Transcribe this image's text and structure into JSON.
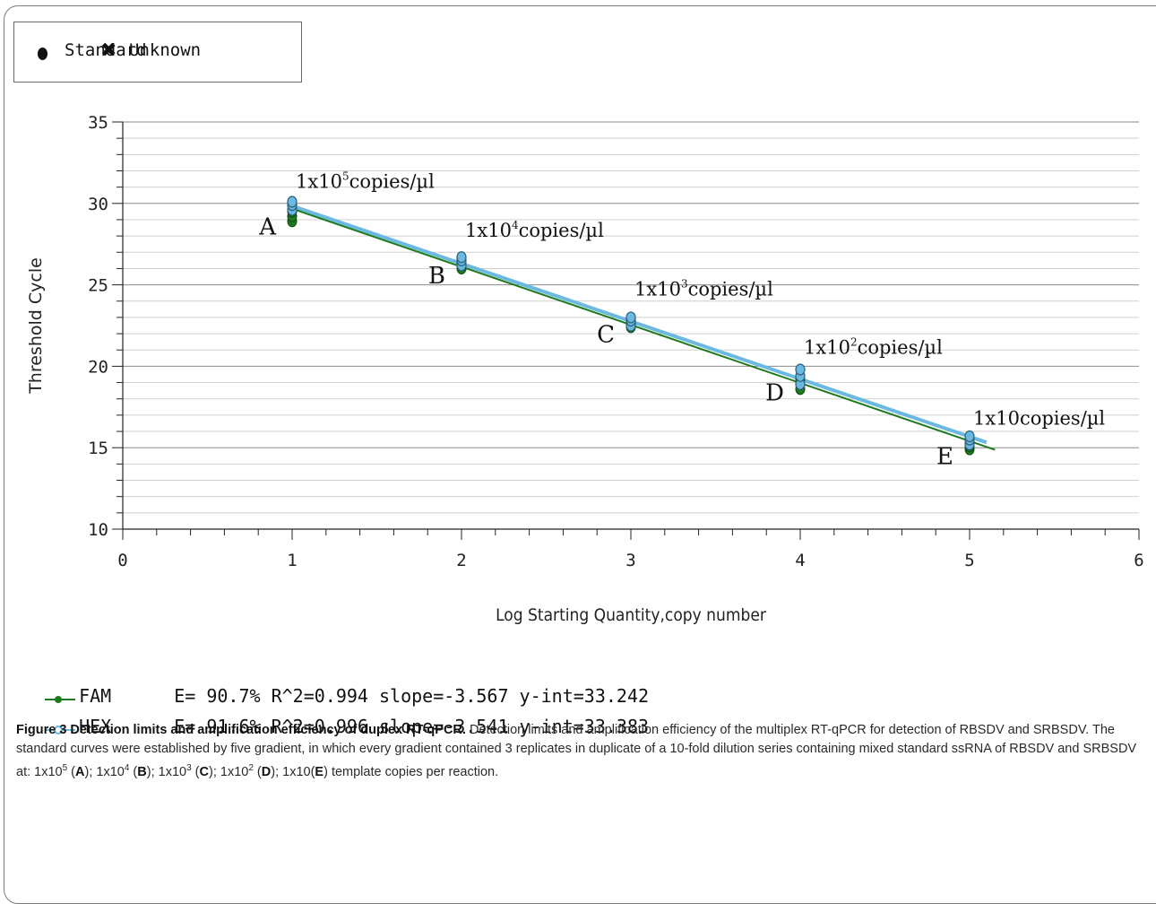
{
  "legend": {
    "standard_label": "Standard",
    "unknown_label": "Unknown",
    "standard_icon": "filled-circle-icon",
    "unknown_icon": "cross-icon"
  },
  "chart_data": {
    "type": "scatter",
    "xlabel": "Log Starting Quantity,copy number",
    "ylabel": "Threshold Cycle",
    "xlim": [
      0,
      6
    ],
    "ylim": [
      10,
      35
    ],
    "x_ticks": [
      "0",
      "1",
      "2",
      "3",
      "4",
      "5",
      "6"
    ],
    "y_ticks": [
      "10",
      "15",
      "20",
      "25",
      "30",
      "35"
    ],
    "grid": "horizontal",
    "series": [
      {
        "name": "FAM",
        "color": "#1e7a1e",
        "points": [
          {
            "x": 1,
            "y": 28.9
          },
          {
            "x": 1,
            "y": 29.2
          },
          {
            "x": 1,
            "y": 29.5
          },
          {
            "x": 2,
            "y": 26.0
          },
          {
            "x": 2,
            "y": 26.2
          },
          {
            "x": 2,
            "y": 26.4
          },
          {
            "x": 3,
            "y": 22.4
          },
          {
            "x": 3,
            "y": 22.6
          },
          {
            "x": 3,
            "y": 22.8
          },
          {
            "x": 4,
            "y": 18.6
          },
          {
            "x": 4,
            "y": 18.9
          },
          {
            "x": 4,
            "y": 19.2
          },
          {
            "x": 5,
            "y": 14.9
          },
          {
            "x": 5,
            "y": 15.1
          },
          {
            "x": 5,
            "y": 15.3
          }
        ],
        "fit": {
          "slope": -3.567,
          "intercept": 33.242,
          "x_range": [
            1,
            5.15
          ]
        }
      },
      {
        "name": "HEX",
        "color": "#6bb8e0",
        "points": [
          {
            "x": 1,
            "y": 29.6
          },
          {
            "x": 1,
            "y": 29.9
          },
          {
            "x": 1,
            "y": 30.1
          },
          {
            "x": 2,
            "y": 26.2
          },
          {
            "x": 2,
            "y": 26.5
          },
          {
            "x": 2,
            "y": 26.7
          },
          {
            "x": 3,
            "y": 22.5
          },
          {
            "x": 3,
            "y": 22.8
          },
          {
            "x": 3,
            "y": 23.0
          },
          {
            "x": 4,
            "y": 18.9
          },
          {
            "x": 4,
            "y": 19.4
          },
          {
            "x": 4,
            "y": 19.8
          },
          {
            "x": 5,
            "y": 15.2
          },
          {
            "x": 5,
            "y": 15.5
          },
          {
            "x": 5,
            "y": 15.7
          }
        ],
        "fit": {
          "slope": -3.541,
          "intercept": 33.383,
          "x_range": [
            1,
            5.1
          ]
        }
      }
    ],
    "annotations": [
      {
        "letter": "A",
        "x": 1,
        "y": 29.3,
        "base": "1x10",
        "exp": "5",
        "unit": "copies/µl"
      },
      {
        "letter": "B",
        "x": 2,
        "y": 26.3,
        "base": "1x10",
        "exp": "4",
        "unit": "copies/µl"
      },
      {
        "letter": "C",
        "x": 3,
        "y": 22.7,
        "base": "1x10",
        "exp": "3",
        "unit": "copies/µl"
      },
      {
        "letter": "D",
        "x": 4,
        "y": 19.1,
        "base": "1x10",
        "exp": "2",
        "unit": "copies/µl"
      },
      {
        "letter": "E",
        "x": 5,
        "y": 15.2,
        "base": "1x10",
        "exp": "",
        "unit": "copies/µl"
      }
    ]
  },
  "stats": [
    {
      "name": "FAM",
      "color": "#1e7a1e",
      "text": "E= 90.7% R^2=0.994 slope=-3.567 y-int=33.242"
    },
    {
      "name": "HEX",
      "color": "#6bb8e0",
      "text": "E= 91.6% R^2=0.996 slope=-3.541 y-int=33.383"
    }
  ],
  "caption": {
    "title": "Figure 3 Detection limits and amplification efficiency of duplex RT-qPCR.",
    "body": "Detection limits and amplification efficiency of the multiplex RT-qPCR for detection of RBSDV and SRBSDV. The standard curves were established by five gradient, in which every gradient contained 3 replicates in duplicate of a 10-fold dilution series containing mixed standard ssRNA of RBSDV and SRBSDV at: 1x10",
    "parts": [
      {
        "sup": "5",
        "label": "A",
        "sep": "); 1x10"
      },
      {
        "sup": "4",
        "label": "B",
        "sep": "); 1x10"
      },
      {
        "sup": "3",
        "label": "C",
        "sep": "); 1x10"
      },
      {
        "sup": "2",
        "label": "D",
        "sep": "); 1x10("
      },
      {
        "sup": "",
        "label": "E",
        "sep": ") template copies per reaction."
      }
    ]
  }
}
